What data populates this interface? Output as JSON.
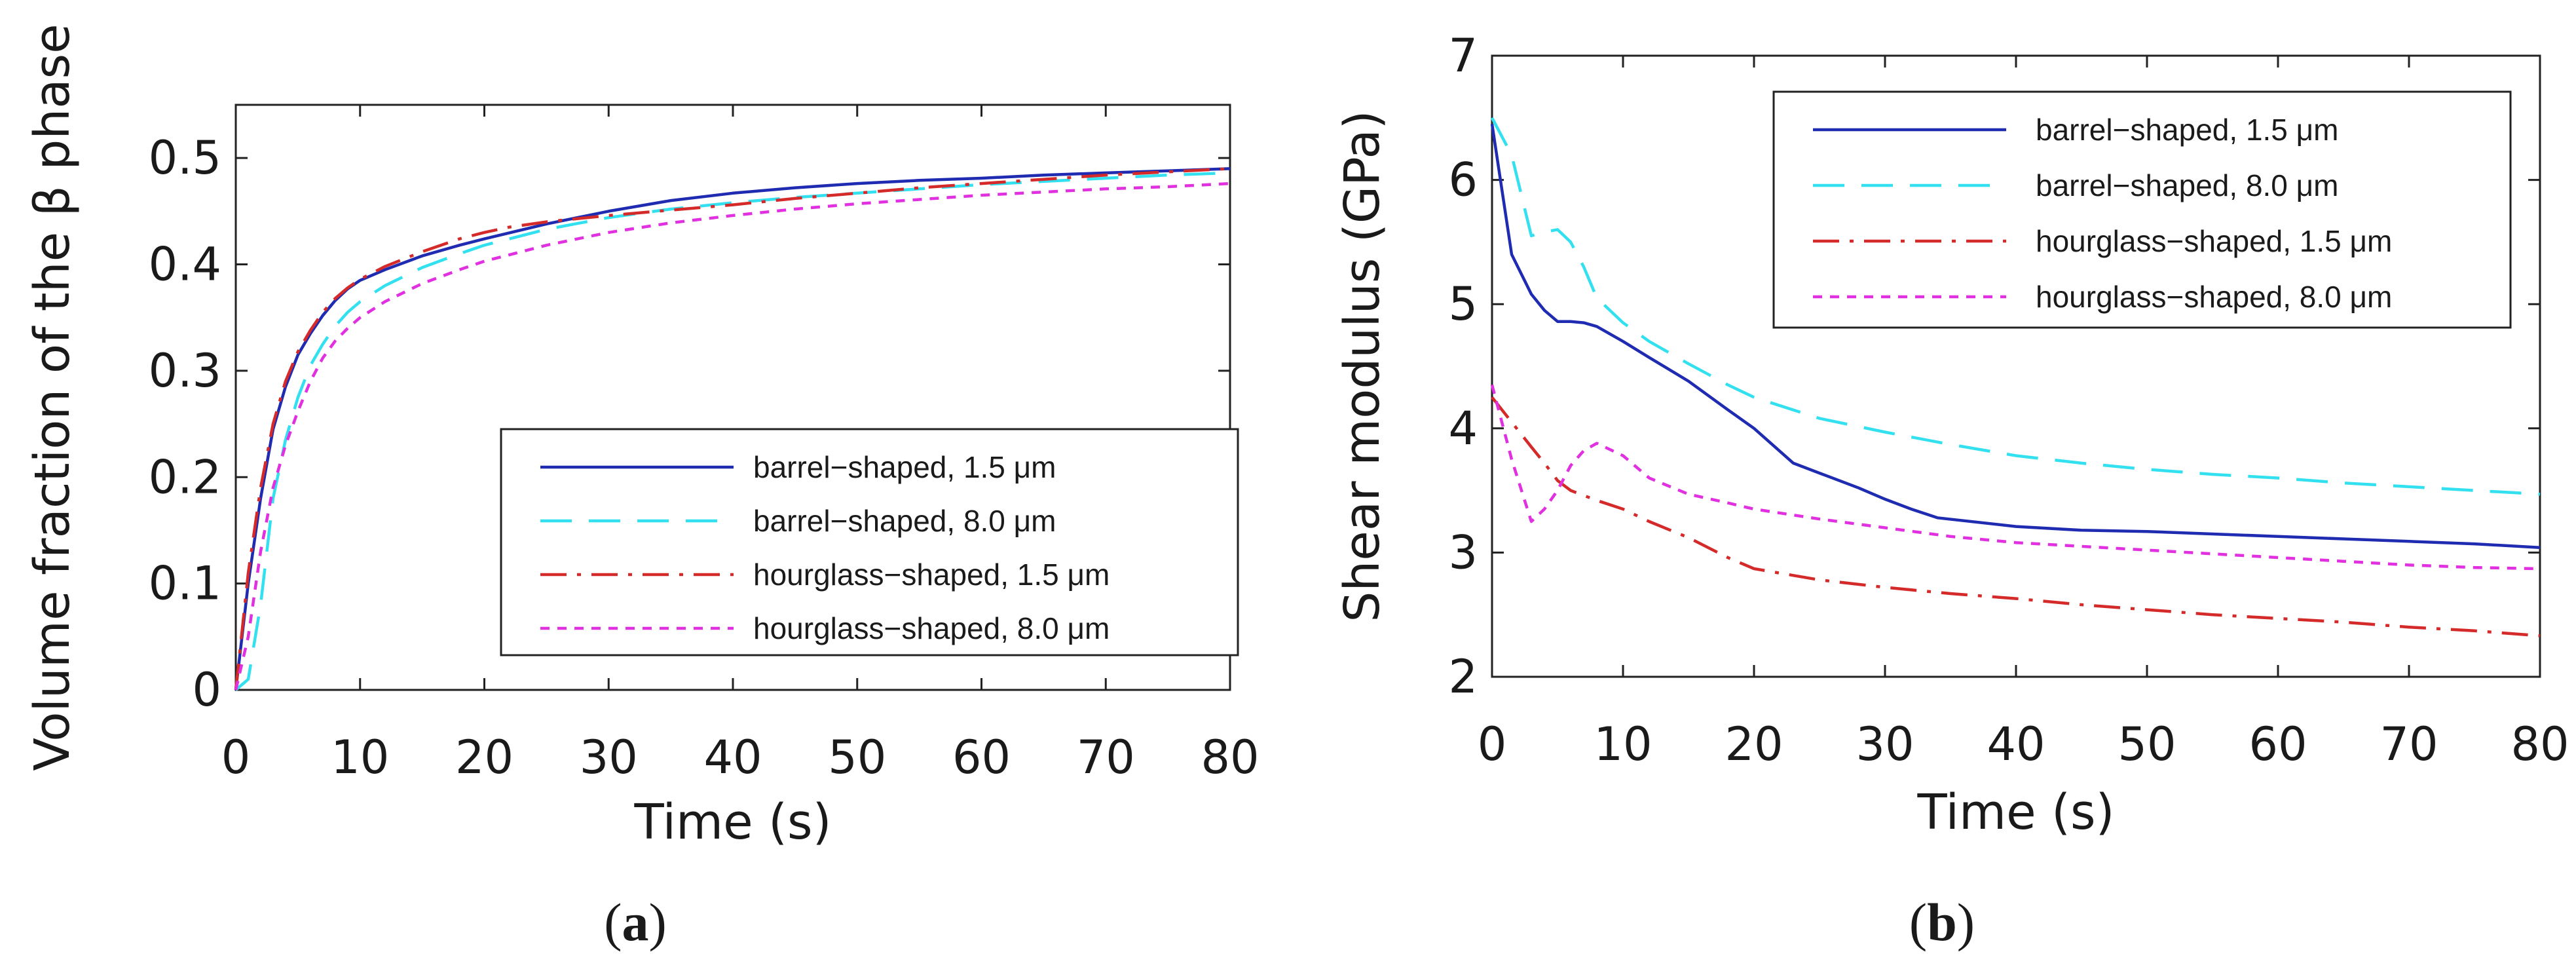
{
  "chart_data": [
    {
      "type": "line",
      "panel": "a",
      "panel_label": {
        "open": "(",
        "letter": "a",
        "close": ")"
      },
      "xlabel": "Time (s)",
      "ylabel": "Volume fraction of the β phase",
      "xlim": [
        0,
        80
      ],
      "ylim": [
        0,
        0.55
      ],
      "x_ticks": [
        0,
        10,
        20,
        30,
        40,
        50,
        60,
        70,
        80
      ],
      "y_ticks": [
        0,
        0.1,
        0.2,
        0.3,
        0.4,
        0.5
      ],
      "y_tick_labels": [
        "0",
        "0.1",
        "0.2",
        "0.3",
        "0.4",
        "0.5"
      ],
      "grid": false,
      "legend_position": "bottom-right",
      "series": [
        {
          "name": "barrel−shaped, 1.5 μm",
          "color": "#1f2bb0",
          "dash": "solid",
          "x": [
            0,
            1,
            2,
            3,
            4,
            5,
            6,
            7,
            8,
            9,
            10,
            12,
            15,
            18,
            20,
            25,
            30,
            35,
            40,
            45,
            50,
            55,
            60,
            65,
            70,
            75,
            80
          ],
          "y": [
            0,
            0.1,
            0.18,
            0.245,
            0.285,
            0.315,
            0.335,
            0.352,
            0.366,
            0.377,
            0.385,
            0.395,
            0.408,
            0.418,
            0.424,
            0.438,
            0.45,
            0.46,
            0.467,
            0.472,
            0.476,
            0.479,
            0.481,
            0.484,
            0.486,
            0.488,
            0.49
          ]
        },
        {
          "name": "barrel−shaped, 8.0 μm",
          "color": "#33e0f0",
          "dash": "dashed",
          "x": [
            0,
            1,
            2,
            3,
            4,
            5,
            6,
            7,
            8,
            9,
            10,
            12,
            15,
            18,
            20,
            25,
            30,
            35,
            40,
            45,
            50,
            55,
            60,
            65,
            70,
            75,
            80
          ],
          "y": [
            0,
            0.01,
            0.08,
            0.18,
            0.235,
            0.275,
            0.305,
            0.325,
            0.342,
            0.355,
            0.365,
            0.38,
            0.397,
            0.41,
            0.418,
            0.433,
            0.444,
            0.452,
            0.458,
            0.463,
            0.467,
            0.471,
            0.475,
            0.478,
            0.481,
            0.484,
            0.486
          ]
        },
        {
          "name": "hourglass−shaped, 1.5  μm",
          "color": "#d42a2a",
          "dash": "dashdot",
          "x": [
            0,
            1,
            2,
            3,
            4,
            5,
            6,
            7,
            8,
            9,
            10,
            12,
            15,
            18,
            20,
            22,
            25,
            30,
            35,
            40,
            45,
            50,
            55,
            60,
            65,
            70,
            75,
            80
          ],
          "y": [
            0,
            0.11,
            0.19,
            0.25,
            0.29,
            0.318,
            0.338,
            0.355,
            0.368,
            0.378,
            0.386,
            0.398,
            0.412,
            0.424,
            0.43,
            0.435,
            0.44,
            0.446,
            0.451,
            0.456,
            0.462,
            0.467,
            0.472,
            0.476,
            0.48,
            0.484,
            0.487,
            0.49
          ]
        },
        {
          "name": "hourglass−shaped, 8.0  μm",
          "color": "#e030e0",
          "dash": "dotted",
          "x": [
            0,
            1,
            2,
            3,
            4,
            5,
            6,
            7,
            8,
            9,
            10,
            12,
            15,
            18,
            20,
            25,
            30,
            35,
            40,
            45,
            50,
            55,
            60,
            65,
            70,
            75,
            80
          ],
          "y": [
            0,
            0.05,
            0.13,
            0.19,
            0.23,
            0.262,
            0.29,
            0.312,
            0.328,
            0.34,
            0.35,
            0.365,
            0.382,
            0.395,
            0.403,
            0.418,
            0.43,
            0.439,
            0.446,
            0.452,
            0.457,
            0.461,
            0.465,
            0.468,
            0.471,
            0.473,
            0.476
          ]
        }
      ]
    },
    {
      "type": "line",
      "panel": "b",
      "panel_label": {
        "open": "(",
        "letter": "b",
        "close": ")"
      },
      "xlabel": "Time (s)",
      "ylabel": "Shear modulus (GPa)",
      "xlim": [
        0,
        80
      ],
      "ylim": [
        2,
        7
      ],
      "x_ticks": [
        0,
        10,
        20,
        30,
        40,
        50,
        60,
        70,
        80
      ],
      "y_ticks": [
        2,
        3,
        4,
        5,
        6,
        7
      ],
      "y_tick_labels": [
        "2",
        "3",
        "4",
        "5",
        "6",
        "7"
      ],
      "grid": false,
      "legend_position": "top-right",
      "series": [
        {
          "name": "barrel−shaped, 1.5 μm",
          "color": "#1f2bb0",
          "dash": "solid",
          "x": [
            0,
            1.5,
            3,
            4,
            5,
            6,
            7,
            8,
            10,
            12,
            15,
            18,
            20,
            23,
            25,
            28,
            30,
            32,
            34,
            40,
            45,
            50,
            55,
            60,
            65,
            70,
            75,
            80
          ],
          "y": [
            6.45,
            5.4,
            5.08,
            4.95,
            4.86,
            4.86,
            4.85,
            4.82,
            4.7,
            4.57,
            4.38,
            4.15,
            4.0,
            3.72,
            3.64,
            3.52,
            3.43,
            3.35,
            3.28,
            3.21,
            3.18,
            3.17,
            3.15,
            3.13,
            3.11,
            3.09,
            3.07,
            3.04
          ]
        },
        {
          "name": "barrel−shaped, 8.0 μm",
          "color": "#33e0f0",
          "dash": "dashed",
          "x": [
            0,
            1.5,
            3,
            4,
            5,
            6,
            7,
            8,
            10,
            12,
            15,
            18,
            20,
            25,
            30,
            35,
            40,
            45,
            50,
            55,
            60,
            65,
            70,
            75,
            80
          ],
          "y": [
            6.5,
            6.2,
            5.55,
            5.58,
            5.6,
            5.5,
            5.3,
            5.05,
            4.85,
            4.7,
            4.52,
            4.35,
            4.25,
            4.08,
            3.97,
            3.87,
            3.78,
            3.72,
            3.67,
            3.63,
            3.6,
            3.56,
            3.53,
            3.5,
            3.47
          ]
        },
        {
          "name": "hourglass−shaped, 1.5 μm",
          "color": "#d42a2a",
          "dash": "dashdot",
          "x": [
            0,
            1.5,
            3,
            4,
            5,
            6,
            8,
            10,
            12,
            15,
            18,
            20,
            25,
            30,
            35,
            40,
            45,
            50,
            55,
            60,
            65,
            70,
            75,
            80
          ],
          "y": [
            4.25,
            4.05,
            3.85,
            3.72,
            3.58,
            3.5,
            3.42,
            3.35,
            3.25,
            3.12,
            2.96,
            2.87,
            2.78,
            2.72,
            2.67,
            2.63,
            2.58,
            2.54,
            2.5,
            2.47,
            2.44,
            2.4,
            2.37,
            2.33
          ]
        },
        {
          "name": "hourglass−shaped, 8.0 μm",
          "color": "#e030e0",
          "dash": "dotted",
          "x": [
            0,
            1.5,
            3,
            4,
            5,
            6,
            7,
            8,
            10,
            12,
            15,
            18,
            20,
            25,
            30,
            35,
            40,
            45,
            50,
            55,
            60,
            65,
            70,
            75,
            80
          ],
          "y": [
            4.35,
            3.75,
            3.25,
            3.35,
            3.5,
            3.7,
            3.82,
            3.88,
            3.78,
            3.6,
            3.47,
            3.4,
            3.35,
            3.27,
            3.2,
            3.13,
            3.08,
            3.05,
            3.02,
            2.99,
            2.96,
            2.93,
            2.9,
            2.88,
            2.87
          ]
        }
      ]
    }
  ]
}
